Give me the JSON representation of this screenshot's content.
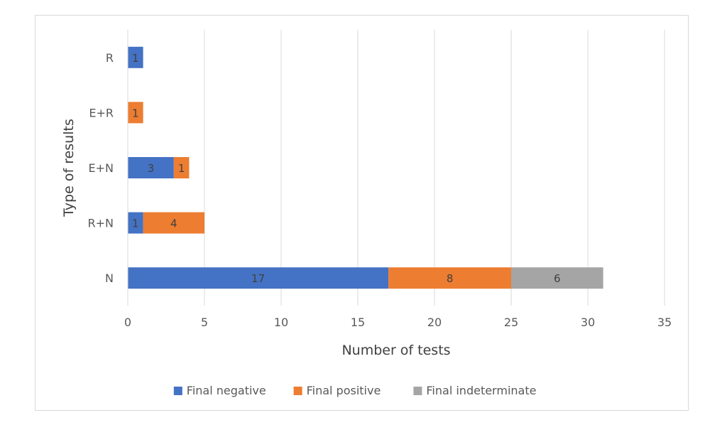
{
  "chart_data": {
    "type": "bar",
    "orientation": "horizontal",
    "stacked": true,
    "categories": [
      "N",
      "R+N",
      "E+N",
      "E+R",
      "R"
    ],
    "series": [
      {
        "name": "Final negative",
        "values": [
          17,
          1,
          3,
          0,
          1
        ],
        "color": "#4472c4"
      },
      {
        "name": "Final positive",
        "values": [
          8,
          4,
          1,
          1,
          0
        ],
        "color": "#ed7d31"
      },
      {
        "name": "Final indeterminate",
        "values": [
          6,
          0,
          0,
          0,
          0
        ],
        "color": "#a5a5a5"
      }
    ],
    "title": "",
    "xlabel": "Number of tests",
    "ylabel": "Type of results",
    "xlim": [
      0,
      35
    ],
    "xticks": [
      0,
      5,
      10,
      15,
      20,
      25,
      30,
      35
    ],
    "grid": "vertical",
    "legend": "bottom",
    "data_labels": true
  }
}
